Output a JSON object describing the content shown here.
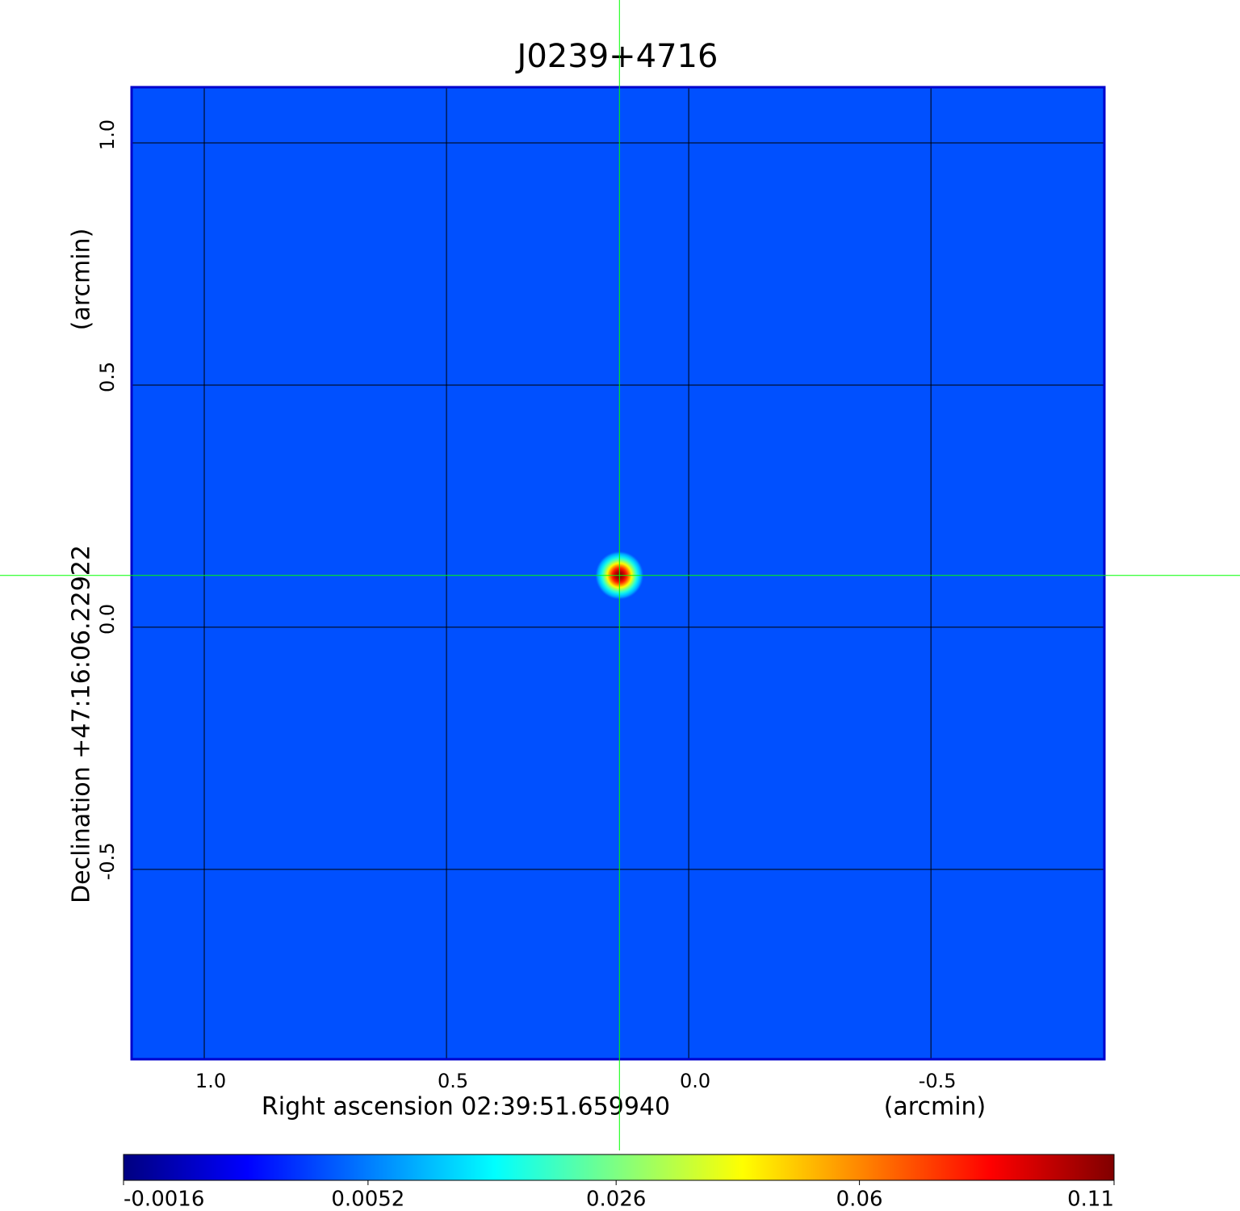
{
  "chart_data": {
    "type": "image",
    "title": "J0239+4716",
    "title_color": "#0000cc",
    "x_label": "Right ascension  02:39:51.659940",
    "x_unit": "(arcmin)",
    "y_label": "Declination  +47:16:06.22922",
    "y_unit": "(arcmin)",
    "xlim": [
      1.15,
      -0.858
    ],
    "ylim": [
      -0.892,
      1.115
    ],
    "xticks": [
      {
        "value": 1,
        "label": "1.0"
      },
      0.5,
      {
        "value": 0,
        "label": "0.0"
      },
      -0.5
    ],
    "yticks": [
      -0.5,
      {
        "value": 0,
        "label": "0.0"
      },
      0.5,
      {
        "value": 1,
        "label": "1.0"
      }
    ],
    "grid": true,
    "frame_color": "#0000cc",
    "colormap": "jet",
    "background": 0.003,
    "source": {
      "x": 0.143,
      "y": 0.107,
      "peak": 0.11
    },
    "crosshair": {
      "x": 0.143,
      "y": 0.107,
      "color": "#00ff00"
    },
    "colorbar": {
      "lim": [
        -0.0016,
        0.11
      ],
      "scale": "sqrt",
      "ticks": [
        -0.0016,
        0.0052,
        0.026,
        0.06,
        0.11
      ]
    }
  }
}
